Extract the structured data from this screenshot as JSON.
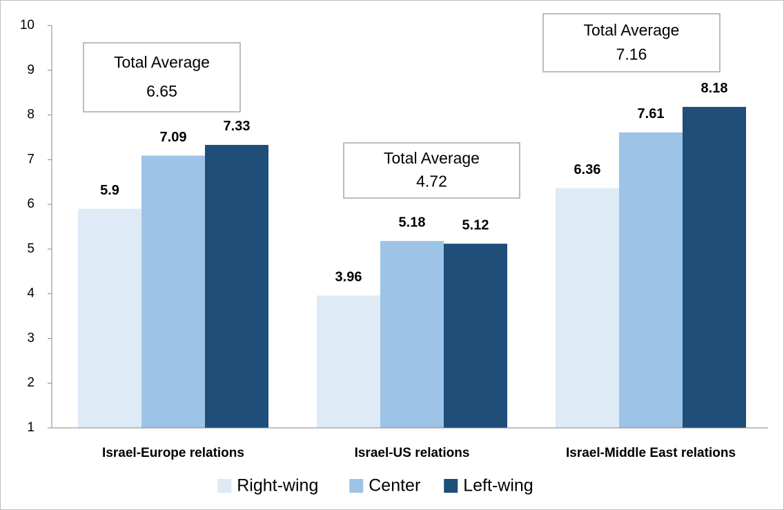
{
  "chart_data": {
    "type": "bar",
    "categories": [
      "Israel-Europe relations",
      "Israel-US relations",
      "Israel-Middle East relations"
    ],
    "series": [
      {
        "name": "Right-wing",
        "color": "#deeaf6",
        "values": [
          5.9,
          3.96,
          6.36
        ]
      },
      {
        "name": "Center",
        "color": "#9dc3e6",
        "values": [
          7.09,
          5.18,
          7.61
        ]
      },
      {
        "name": "Left-wing",
        "color": "#1f4e79",
        "values": [
          7.33,
          5.12,
          8.18
        ]
      }
    ],
    "ylim": [
      1,
      10
    ],
    "yticks": [
      1,
      2,
      3,
      4,
      5,
      6,
      7,
      8,
      9,
      10
    ],
    "grid": false,
    "legend": "bottom",
    "annotations": [
      {
        "label": "Total Average",
        "value": 6.65
      },
      {
        "label": "Total Average",
        "value": 4.72
      },
      {
        "label": "Total Average",
        "value": 7.16
      }
    ]
  }
}
